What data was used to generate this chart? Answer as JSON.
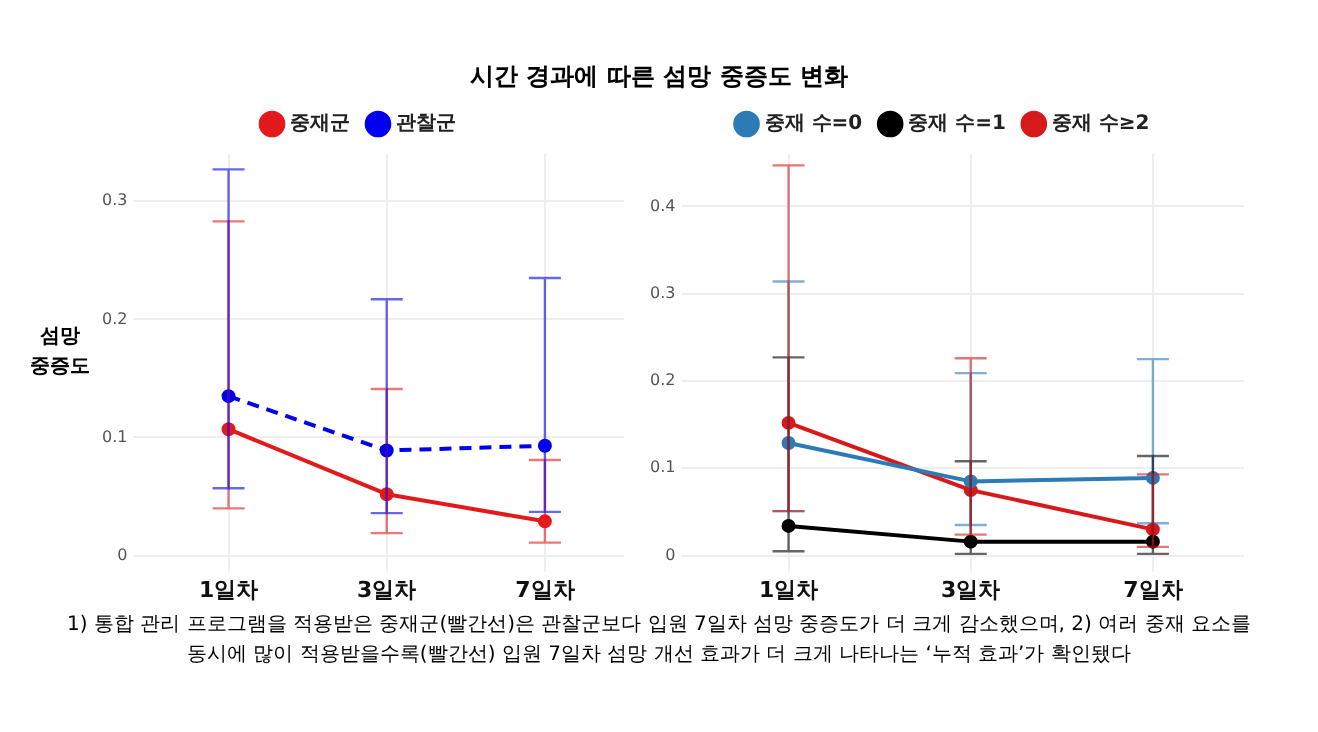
{
  "chart_data": [
    {
      "type": "line",
      "title": "시간 경과에 따른 섬망 중증도 변화",
      "ylabel": "섬망 중증도",
      "categories": [
        "1일차",
        "3일차",
        "7일차"
      ],
      "series": [
        {
          "name": "중재군",
          "color": "#e31a1c",
          "line_style": "solid",
          "values": [
            0.107,
            0.052,
            0.029
          ],
          "errors": [
            [
              0.04,
              0.283
            ],
            [
              0.019,
              0.141
            ],
            [
              0.011,
              0.081
            ]
          ]
        },
        {
          "name": "관찰군",
          "color": "#0000ee",
          "line_style": "dashed",
          "values": [
            0.135,
            0.089,
            0.093
          ],
          "errors": [
            [
              0.057,
              0.327
            ],
            [
              0.036,
              0.217
            ],
            [
              0.037,
              0.235
            ]
          ]
        }
      ],
      "ylim": [
        0,
        0.34
      ],
      "yticks": [
        0,
        0.1,
        0.2,
        0.3
      ],
      "grid": true,
      "legend": "top",
      "marker": "circle",
      "annotations": [
        "1) 통합 관리 프로그램을 적용받은 중재군(빨간선)은 관찰군보다 입원 7일차 섬망 중증도가 더 크게 감소했으며, 2) 여러 중재 요소를 동시에 많이 적용받을수록(빨간선) 입원 7일차 섬망 개선 효과가 더 크게 나타나는 ‘누적 효과’가 확인됐다"
      ]
    },
    {
      "type": "line",
      "categories": [
        "1일차",
        "3일차",
        "7일차"
      ],
      "series": [
        {
          "name": "중재 수=0",
          "color": "#2c7bb6",
          "line_style": "solid",
          "values": [
            0.129,
            0.085,
            0.089
          ],
          "errors": [
            [
              0.051,
              0.314
            ],
            [
              0.035,
              0.209
            ],
            [
              0.037,
              0.225
            ]
          ]
        },
        {
          "name": "중재 수=1",
          "color": "#000000",
          "line_style": "solid",
          "values": [
            0.034,
            0.016,
            0.016
          ],
          "errors": [
            [
              0.005,
              0.227
            ],
            [
              0.002,
              0.108
            ],
            [
              0.002,
              0.114
            ]
          ]
        },
        {
          "name": "중재 수≥2",
          "color": "#d7191c",
          "line_style": "solid",
          "values": [
            0.152,
            0.075,
            0.03
          ],
          "errors": [
            [
              0.051,
              0.447
            ],
            [
              0.024,
              0.226
            ],
            [
              0.01,
              0.093
            ]
          ]
        }
      ],
      "ylim": [
        0,
        0.46
      ],
      "yticks": [
        0,
        0.1,
        0.2,
        0.3,
        0.4
      ],
      "grid": true,
      "legend": "top",
      "marker": "circle"
    }
  ]
}
